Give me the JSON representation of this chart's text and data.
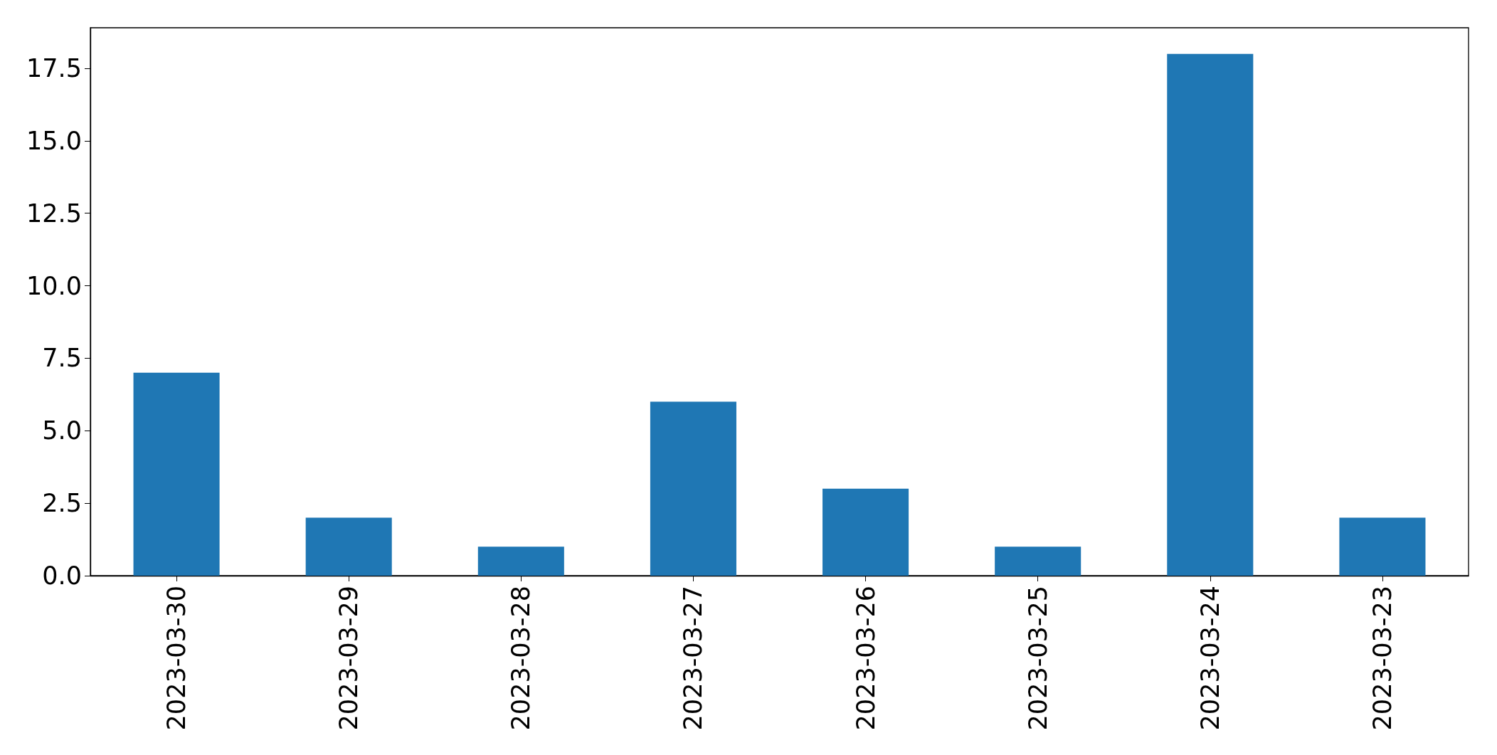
{
  "chart_data": {
    "type": "bar",
    "categories": [
      "2023-03-30",
      "2023-03-29",
      "2023-03-28",
      "2023-03-27",
      "2023-03-26",
      "2023-03-25",
      "2023-03-24",
      "2023-03-23"
    ],
    "values": [
      7,
      2,
      1,
      6,
      3,
      1,
      18,
      2
    ],
    "color": "#1f77b4",
    "ylim": [
      0,
      18.9
    ],
    "yticks": [
      {
        "value": 0,
        "label": "0.0"
      },
      {
        "value": 2.5,
        "label": "2.5"
      },
      {
        "value": 5,
        "label": "5.0"
      },
      {
        "value": 7.5,
        "label": "7.5"
      },
      {
        "value": 10,
        "label": "10.0"
      },
      {
        "value": 12.5,
        "label": "12.5"
      },
      {
        "value": 15,
        "label": "15.0"
      },
      {
        "value": 17.5,
        "label": "17.5"
      }
    ],
    "grid": false
  }
}
